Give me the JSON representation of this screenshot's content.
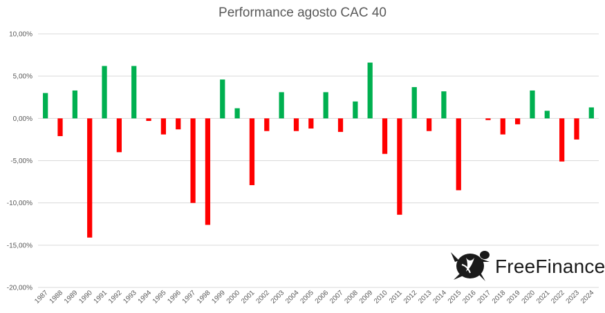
{
  "chart_data": {
    "type": "bar",
    "title": "Performance agosto CAC 40",
    "xlabel": "",
    "ylabel": "",
    "ylim": [
      -20,
      10
    ],
    "y_ticks": [
      "10,00%",
      "5,00%",
      "0,00%",
      "-5,00%",
      "-10,00%",
      "-15,00%",
      "-20,00%"
    ],
    "y_tick_values": [
      10,
      5,
      0,
      -5,
      -10,
      -15,
      -20
    ],
    "grid": true,
    "positive_color": "#00b050",
    "negative_color": "#ff0000",
    "categories": [
      "1987",
      "1988",
      "1989",
      "1990",
      "1991",
      "1992",
      "1993",
      "1994",
      "1995",
      "1996",
      "1997",
      "1998",
      "1999",
      "2000",
      "2001",
      "2002",
      "2003",
      "2004",
      "2005",
      "2006",
      "2007",
      "2008",
      "2009",
      "2010",
      "2011",
      "2012",
      "2013",
      "2014",
      "2015",
      "2016",
      "2017",
      "2018",
      "2019",
      "2020",
      "2021",
      "2022",
      "2023",
      "2024"
    ],
    "values": [
      3.0,
      -2.1,
      3.3,
      -14.1,
      6.2,
      -4.0,
      6.2,
      -0.3,
      -1.9,
      -1.3,
      -10.0,
      -12.6,
      4.6,
      1.2,
      -7.9,
      -1.5,
      3.1,
      -1.5,
      -1.2,
      3.1,
      -1.6,
      2.0,
      6.6,
      -4.2,
      -11.4,
      3.7,
      -1.5,
      3.2,
      -8.5,
      0.0,
      -0.2,
      -1.9,
      -0.7,
      3.3,
      0.9,
      -5.1,
      -2.5,
      1.3
    ]
  },
  "logo": {
    "text": "FreeFinance",
    "icon": "turtle-icon"
  }
}
